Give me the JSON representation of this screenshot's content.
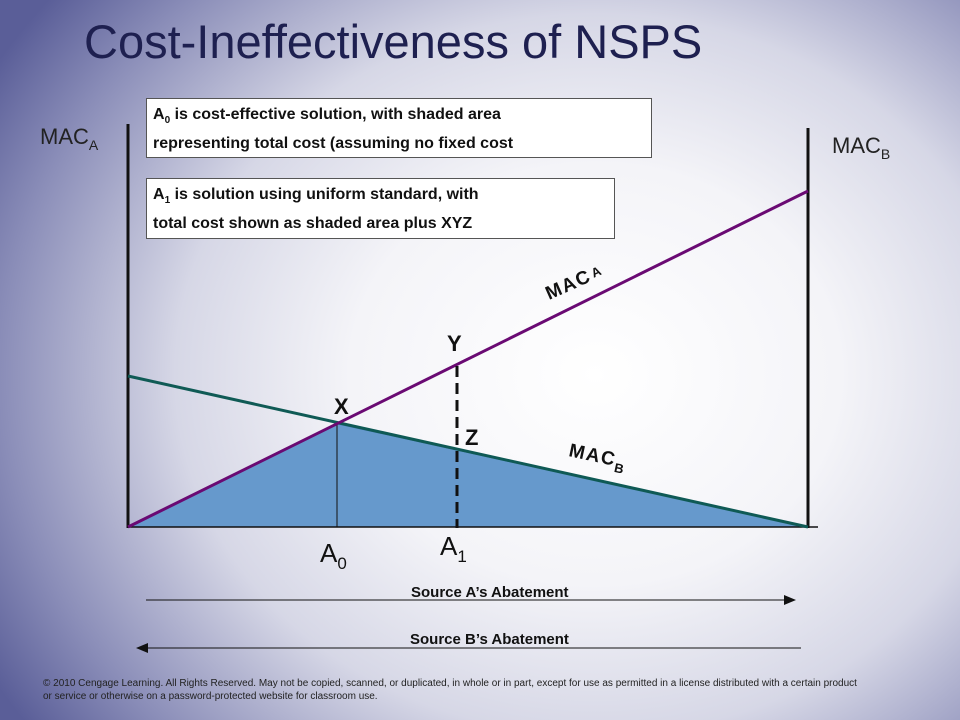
{
  "title": "Cost-Ineffectiveness of NSPS",
  "callouts": [
    {
      "prefix": "A",
      "sub": "0",
      "line1": " is cost-effective solution, with shaded area",
      "line2": "representing total cost (assuming no fixed cost"
    },
    {
      "prefix": "A",
      "sub": "1",
      "line1": " is solution using uniform standard, with",
      "line2": "total cost shown as shaded area plus XYZ"
    }
  ],
  "axis_labels": {
    "left_main": "MAC",
    "left_sub": "A",
    "right_main": "MAC",
    "right_sub": "B"
  },
  "curve_labels": {
    "mac_a_main": "MAC",
    "mac_a_sub": "A",
    "mac_b_main": "MAC",
    "mac_b_sub": "B"
  },
  "points": {
    "x": "X",
    "y": "Y",
    "z": "Z"
  },
  "ticks": {
    "a0_main": "A",
    "a0_sub": "0",
    "a1_main": "A",
    "a1_sub": "1"
  },
  "arrows": {
    "source_a": "Source A’s Abatement",
    "source_b": "Source B’s Abatement"
  },
  "colors": {
    "mac_a_line": "#6a0a73",
    "mac_b_line": "#0f5a55",
    "shaded_area": "#6699cc",
    "axes": "#111111"
  },
  "copyright": "© 2010 Cengage Learning. All Rights Reserved. May not be copied, scanned, or duplicated, in whole or in part, except for use as permitted in a license distributed with a certain product or service or otherwise on a password-protected website for classroom use."
}
